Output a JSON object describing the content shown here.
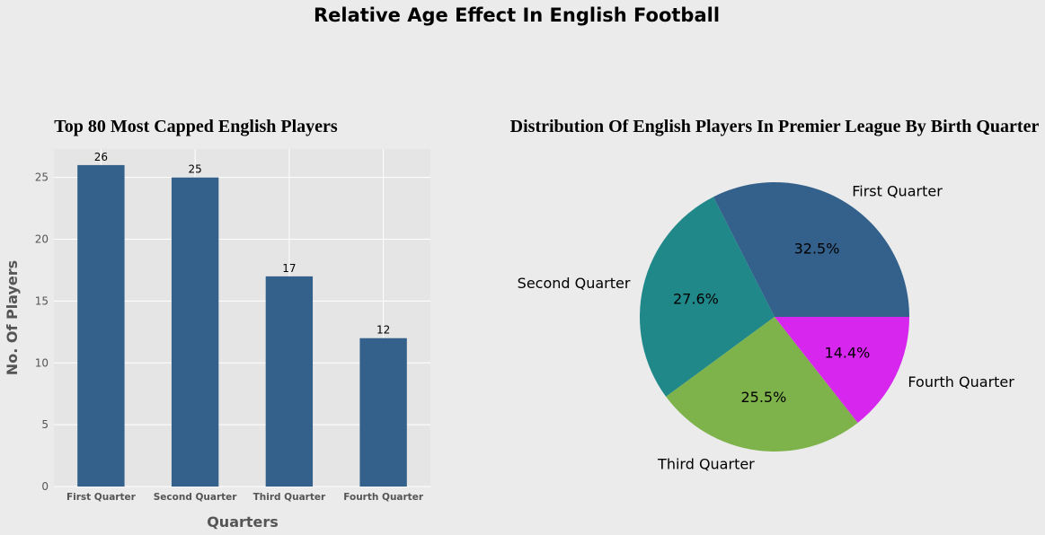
{
  "figure": {
    "title": "Relative Age Effect In English Football",
    "background": "#ebebeb"
  },
  "chart_data": [
    {
      "type": "bar",
      "title": "Top 80 Most Capped English Players",
      "xlabel": "Quarters",
      "ylabel": "No. Of Players",
      "categories": [
        "First Quarter",
        "Second Quarter",
        "Third Quarter",
        "Fourth Quarter"
      ],
      "values": [
        26,
        25,
        17,
        12
      ],
      "ylim": [
        0,
        27.3
      ],
      "yticks": [
        0,
        5,
        10,
        15,
        20,
        25
      ],
      "grid": true,
      "bar_color": "#33618c",
      "panel_color": "#e5e5e5"
    },
    {
      "type": "pie",
      "title": "Distribution Of English Players In Premier League By Birth Quarter",
      "labels": [
        "First Quarter",
        "Second Quarter",
        "Third Quarter",
        "Fourth Quarter"
      ],
      "values": [
        32.5,
        27.6,
        25.5,
        14.4
      ],
      "value_labels": [
        "32.5%",
        "27.6%",
        "25.5%",
        "14.4%"
      ],
      "colors": [
        "#33618c",
        "#21888a",
        "#7eb34c",
        "#d726ee"
      ]
    }
  ]
}
